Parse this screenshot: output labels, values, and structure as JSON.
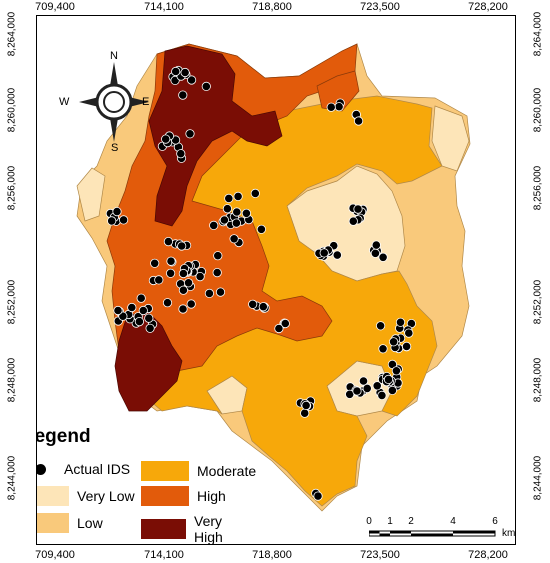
{
  "axes": {
    "x_ticks": [
      "709,400",
      "714,100",
      "718,800",
      "723,500",
      "728,200"
    ],
    "y_ticks": [
      "8,264,000",
      "8,260,000",
      "8,256,000",
      "8,252,000",
      "8,248,000",
      "8,244,000"
    ]
  },
  "north_arrow": {
    "n": "N",
    "s": "S",
    "e": "E",
    "w": "W",
    "icon": "compass-rose-icon"
  },
  "legend": {
    "title": "Legend",
    "items": [
      {
        "label": "Actual IDS",
        "color": "#000000",
        "kind": "point"
      },
      {
        "label": "Very Low",
        "color": "#fde5b8",
        "kind": "area"
      },
      {
        "label": "Low",
        "color": "#f9c97b",
        "kind": "area"
      },
      {
        "label": "Moderate",
        "color": "#f7a80a",
        "kind": "area"
      },
      {
        "label": "High",
        "color": "#e25b0b",
        "kind": "area"
      },
      {
        "label": "Very High",
        "color": "#7a0d05",
        "kind": "area"
      }
    ]
  },
  "scale_bar": {
    "labels": [
      "0",
      "1",
      "2",
      "4",
      "6"
    ],
    "unit": "km"
  },
  "colors": {
    "very_low": "#fde5b8",
    "low": "#f9c97b",
    "moderate": "#f7a80a",
    "high": "#e25b0b",
    "very_high": "#7a0d05",
    "boundary": "#8b6a3a"
  }
}
